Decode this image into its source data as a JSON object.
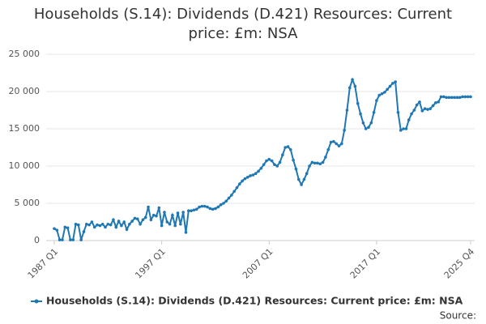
{
  "chart_data": {
    "type": "line",
    "title": "Households (S.14): Dividends (D.421) Resources: Current price: £m: NSA",
    "source": "Source:",
    "categories": [
      "1987 Q1",
      null,
      null,
      null,
      null,
      null,
      null,
      null,
      null,
      null,
      null,
      null,
      null,
      null,
      null,
      null,
      null,
      null,
      null,
      null,
      null,
      null,
      null,
      null,
      null,
      null,
      null,
      null,
      null,
      null,
      null,
      null,
      null,
      null,
      null,
      null,
      null,
      null,
      null,
      null,
      "1997 Q1",
      null,
      null,
      null,
      null,
      null,
      null,
      null,
      null,
      null,
      null,
      null,
      null,
      null,
      null,
      null,
      null,
      null,
      null,
      null,
      null,
      null,
      null,
      null,
      null,
      null,
      null,
      null,
      null,
      null,
      null,
      null,
      null,
      null,
      null,
      null,
      null,
      null,
      null,
      null,
      "2007 Q1",
      null,
      null,
      null,
      null,
      null,
      null,
      null,
      null,
      null,
      null,
      null,
      null,
      null,
      null,
      null,
      null,
      null,
      null,
      null,
      null,
      null,
      null,
      null,
      null,
      null,
      null,
      null,
      null,
      null,
      null,
      null,
      null,
      null,
      null,
      null,
      null,
      null,
      null,
      null,
      "2017 Q1",
      null,
      null,
      null,
      null,
      null,
      null,
      null,
      null,
      null,
      null,
      null,
      null,
      null,
      null,
      null,
      null,
      null,
      null,
      null,
      null,
      null,
      null,
      null,
      null,
      null,
      null,
      null,
      null,
      null,
      null,
      null,
      null,
      null,
      null,
      "2025 Q4"
    ],
    "series": [
      {
        "name": "Households (S.14): Dividends (D.421) Resources: Current price: £m: NSA",
        "color": "#1f78b4",
        "values": [
          1600,
          1400,
          100,
          100,
          1800,
          1700,
          100,
          100,
          2200,
          2100,
          100,
          1200,
          2200,
          2100,
          2500,
          1800,
          2100,
          2000,
          2200,
          1800,
          2200,
          2100,
          2800,
          1800,
          2600,
          2000,
          2500,
          1500,
          2200,
          2600,
          3000,
          2900,
          2200,
          2800,
          3100,
          4500,
          2800,
          3400,
          3300,
          4400,
          2000,
          3800,
          2500,
          2200,
          3400,
          2000,
          3700,
          2200,
          3800,
          1100,
          4000,
          4000,
          4100,
          4200,
          4500,
          4600,
          4600,
          4500,
          4300,
          4200,
          4300,
          4500,
          4800,
          5000,
          5300,
          5700,
          6100,
          6600,
          7100,
          7600,
          8000,
          8300,
          8500,
          8700,
          8800,
          9000,
          9300,
          9700,
          10200,
          10700,
          10900,
          10700,
          10200,
          10000,
          10500,
          11500,
          12500,
          12600,
          12200,
          10800,
          9600,
          8200,
          7500,
          8200,
          9000,
          10000,
          10500,
          10400,
          10400,
          10300,
          10500,
          11200,
          12200,
          13200,
          13300,
          13000,
          12700,
          13000,
          14800,
          17500,
          20500,
          21600,
          20700,
          18400,
          17000,
          15800,
          15000,
          15200,
          15800,
          17200,
          18800,
          19500,
          19700,
          19900,
          20300,
          20700,
          21100,
          21300,
          17200,
          14800,
          15000,
          15000,
          16200,
          17000,
          17500,
          18200,
          18600,
          17400,
          17700,
          17600,
          17700,
          18100,
          18500,
          18600,
          19300,
          19300,
          19200,
          19200,
          19200,
          19200,
          19200,
          19200,
          19300,
          19300,
          19300,
          19300
        ]
      }
    ],
    "ylim": [
      0,
      25000
    ],
    "yticks": [
      0,
      {
        "value": 5000,
        "label": "5 000"
      },
      {
        "value": 10000,
        "label": "10 000"
      },
      {
        "value": 15000,
        "label": "15 000"
      },
      {
        "value": 20000,
        "label": "20 000"
      },
      {
        "value": 25000,
        "label": "25 000"
      }
    ],
    "grid": true
  }
}
